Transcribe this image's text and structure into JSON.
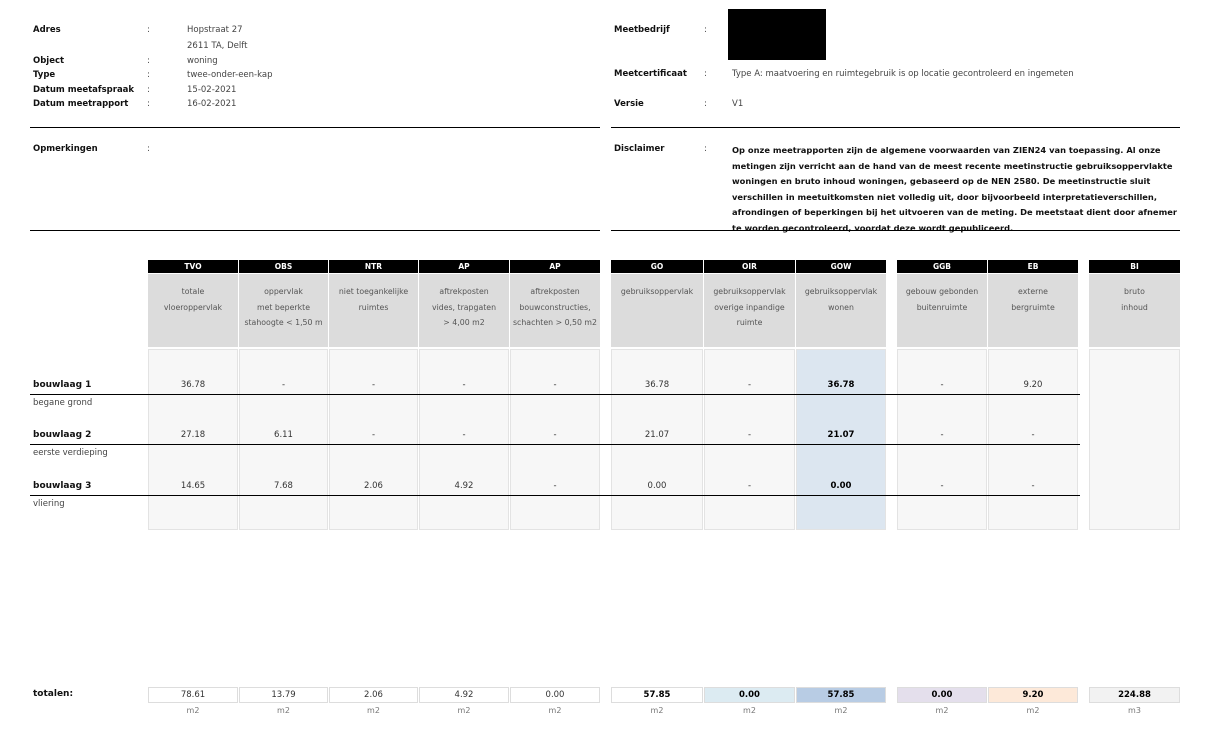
{
  "info_left": [
    {
      "label": "Adres",
      "values": [
        "Hopstraat 27",
        "2611 TA, Delft"
      ]
    },
    {
      "label": "Object",
      "values": [
        "woning"
      ]
    },
    {
      "label": "Type",
      "values": [
        "twee-onder-een-kap"
      ]
    },
    {
      "label": "Datum meetafspraak",
      "values": [
        "15-02-2021"
      ]
    },
    {
      "label": "Datum meetrapport",
      "values": [
        "16-02-2021"
      ]
    }
  ],
  "colon": ":",
  "opmerkingen": {
    "label": "Opmerkingen",
    "value": ""
  },
  "info_right": {
    "meetbedrijf": {
      "label": "Meetbedrijf",
      "value": "[redacted]"
    },
    "meetcertificaat": {
      "label": "Meetcertificaat",
      "value": "Type A: maatvoering en ruimtegebruik is op locatie gecontroleerd en ingemeten"
    },
    "versie": {
      "label": "Versie",
      "value": "V1"
    }
  },
  "disclaimer": {
    "label": "Disclaimer",
    "text": "Op onze meetrapporten zijn de algemene voorwaarden van ZIEN24 van toepassing. Al onze metingen zijn verricht aan de hand van de meest recente meetinstructie gebruiksoppervlakte woningen en bruto inhoud woningen, gebaseerd op de NEN 2580. De meetinstructie sluit verschillen in meetuitkomsten niet volledig uit, door bijvoorbeeld interpretatieverschillen, afrondingen of beperkingen bij het uitvoeren van de meting. De meetstaat dient door afnemer te worden gecontroleerd, voordat deze wordt gepubliceerd."
  },
  "table": {
    "columns": [
      {
        "code": "TVO",
        "desc": "totale\nvloeroppervlak"
      },
      {
        "code": "OBS",
        "desc": "oppervlak\nmet beperkte\nstahoogte < 1,50 m"
      },
      {
        "code": "NTR",
        "desc": "niet toegankelijke\nruimtes"
      },
      {
        "code": "AP",
        "desc": "aftrekposten\nvides, trapgaten\n> 4,00 m2"
      },
      {
        "code": "AP",
        "desc": "aftrekposten\nbouwconstructies,\nschachten > 0,50 m2"
      },
      {
        "code": "GO",
        "desc": "gebruiksoppervlak"
      },
      {
        "code": "OIR",
        "desc": "gebruiksoppervlak\noverige inpandige\nruimte"
      },
      {
        "code": "GOW",
        "desc": "gebruiksoppervlak\nwonen",
        "highlight": "#dce6f0"
      },
      {
        "code": "GGB",
        "desc": "gebouw gebonden\nbuitenruimte"
      },
      {
        "code": "EB",
        "desc": "externe\nbergruimte"
      },
      {
        "code": "BI",
        "desc": "bruto\ninhoud"
      }
    ],
    "rows": [
      {
        "label": "bouwlaag 1",
        "sub": "begane grond",
        "values": [
          "36.78",
          "-",
          "-",
          "-",
          "-",
          "36.78",
          "-",
          "36.78",
          "-",
          "9.20"
        ]
      },
      {
        "label": "bouwlaag 2",
        "sub": "eerste verdieping",
        "values": [
          "27.18",
          "6.11",
          "-",
          "-",
          "-",
          "21.07",
          "-",
          "21.07",
          "-",
          "-"
        ]
      },
      {
        "label": "bouwlaag 3",
        "sub": "vliering",
        "values": [
          "14.65",
          "7.68",
          "2.06",
          "4.92",
          "-",
          "0.00",
          "-",
          "0.00",
          "-",
          "-"
        ]
      }
    ],
    "totals_label": "totalen:",
    "totals": [
      "78.61",
      "13.79",
      "2.06",
      "4.92",
      "0.00",
      "57.85",
      "0.00",
      "57.85",
      "0.00",
      "9.20",
      "224.88"
    ],
    "total_colors": [
      "#ffffff",
      "#ffffff",
      "#ffffff",
      "#ffffff",
      "#ffffff",
      "#ffffff",
      "#dcebf2",
      "#b8cce4",
      "#e4dfec",
      "#fde9d9",
      "#f2f2f2"
    ],
    "units": [
      "m2",
      "m2",
      "m2",
      "m2",
      "m2",
      "m2",
      "m2",
      "m2",
      "m2",
      "m2",
      "m3"
    ]
  }
}
